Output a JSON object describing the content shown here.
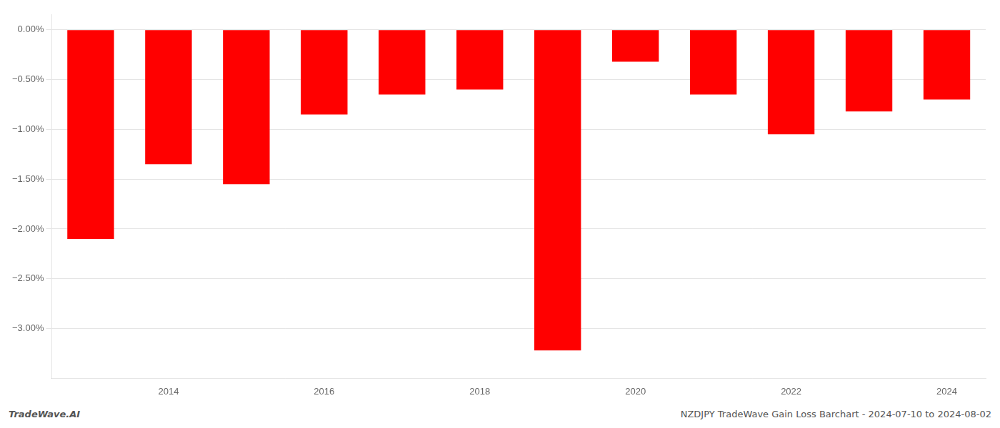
{
  "chart_data": {
    "type": "bar",
    "categories": [
      null,
      "2014",
      null,
      "2016",
      null,
      "2018",
      null,
      "2020",
      null,
      "2022",
      null,
      "2024"
    ],
    "values": [
      -2.1,
      -1.35,
      -1.55,
      -0.85,
      -0.65,
      -0.6,
      -3.22,
      -0.32,
      -0.65,
      -1.05,
      -0.82,
      -0.7
    ],
    "color": "#ff0000",
    "ylim": [
      -3.5,
      0.15
    ],
    "yticks": [
      {
        "value": 0.0,
        "label": "0.00%"
      },
      {
        "value": -0.5,
        "label": "−0.50%"
      },
      {
        "value": -1.0,
        "label": "−1.00%"
      },
      {
        "value": -1.5,
        "label": "−1.50%"
      },
      {
        "value": -2.0,
        "label": "−2.00%"
      },
      {
        "value": -2.5,
        "label": "−2.50%"
      },
      {
        "value": -3.0,
        "label": "−3.00%"
      }
    ],
    "grid": true,
    "annotations": [
      "TradeWave.AI",
      "NZDJPY TradeWave Gain Loss Barchart - 2024-07-10 to 2024-08-02"
    ]
  }
}
